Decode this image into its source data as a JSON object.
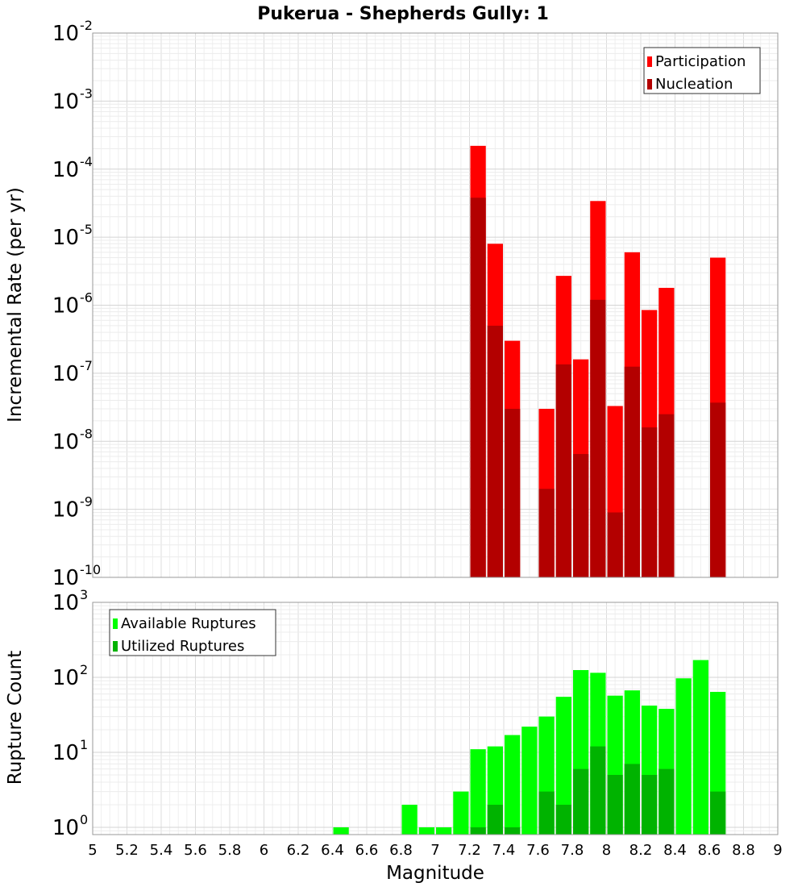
{
  "title": "Pukerua - Shepherds Gully: 1",
  "xlabel": "Magnitude",
  "x_ticks": [
    "5",
    "5.2",
    "5.4",
    "5.6",
    "5.8",
    "6",
    "6.2",
    "6.4",
    "6.6",
    "6.8",
    "7",
    "7.2",
    "7.4",
    "7.6",
    "7.8",
    "8",
    "8.2",
    "8.4",
    "8.6",
    "8.8",
    "9"
  ],
  "colors": {
    "participation": "#ff0000",
    "nucleation": "#b30000",
    "available": "#00ff00",
    "utilized": "#00b300"
  },
  "chart_data": [
    {
      "type": "bar",
      "ylabel": "Incremental Rate (per yr)",
      "xlim": [
        5,
        9
      ],
      "ylim": [
        1e-10,
        0.01
      ],
      "yscale": "log",
      "y_ticks": [
        {
          "base": "10",
          "exp": "-10",
          "value": 1e-10
        },
        {
          "base": "10",
          "exp": "-9",
          "value": 1e-09
        },
        {
          "base": "10",
          "exp": "-8",
          "value": 1e-08
        },
        {
          "base": "10",
          "exp": "-7",
          "value": 1e-07
        },
        {
          "base": "10",
          "exp": "-6",
          "value": 1e-06
        },
        {
          "base": "10",
          "exp": "-5",
          "value": 1e-05
        },
        {
          "base": "10",
          "exp": "-4",
          "value": 0.0001
        },
        {
          "base": "10",
          "exp": "-3",
          "value": 0.001
        },
        {
          "base": "10",
          "exp": "-2",
          "value": 0.01
        }
      ],
      "bin_width": 0.1,
      "grid": true,
      "legend_position": "top-right",
      "series": [
        {
          "name": "Participation",
          "color_key": "participation",
          "x": [
            7.25,
            7.35,
            7.45,
            7.65,
            7.75,
            7.85,
            7.95,
            8.05,
            8.15,
            8.25,
            8.35,
            8.65
          ],
          "values": [
            0.00022,
            8e-06,
            3e-07,
            3e-08,
            2.7e-06,
            1.6e-07,
            3.4e-05,
            3.3e-08,
            6e-06,
            8.5e-07,
            1.8e-06,
            5e-06
          ]
        },
        {
          "name": "Nucleation",
          "color_key": "nucleation",
          "x": [
            7.25,
            7.35,
            7.45,
            7.65,
            7.75,
            7.85,
            7.95,
            8.05,
            8.15,
            8.25,
            8.35,
            8.65
          ],
          "values": [
            3.8e-05,
            5e-07,
            3e-08,
            2e-09,
            1.35e-07,
            6.5e-09,
            1.2e-06,
            9e-10,
            1.25e-07,
            1.6e-08,
            2.5e-08,
            3.7e-08
          ]
        }
      ]
    },
    {
      "type": "bar",
      "ylabel": "Rupture Count",
      "xlim": [
        5,
        9
      ],
      "ylim": [
        0.8,
        1000
      ],
      "yscale": "log",
      "y_ticks": [
        {
          "base": "10",
          "exp": "0",
          "value": 1
        },
        {
          "base": "10",
          "exp": "1",
          "value": 10
        },
        {
          "base": "10",
          "exp": "2",
          "value": 100
        },
        {
          "base": "10",
          "exp": "3",
          "value": 1000
        }
      ],
      "bin_width": 0.1,
      "grid": true,
      "legend_position": "top-left",
      "series": [
        {
          "name": "Available Ruptures",
          "color_key": "available",
          "x": [
            6.45,
            6.85,
            6.95,
            7.05,
            7.15,
            7.25,
            7.35,
            7.45,
            7.55,
            7.65,
            7.75,
            7.85,
            7.95,
            8.05,
            8.15,
            8.25,
            8.35,
            8.45,
            8.55,
            8.65
          ],
          "values": [
            1,
            2,
            1,
            1,
            3,
            11,
            12,
            17,
            22,
            30,
            55,
            125,
            115,
            57,
            67,
            42,
            38,
            97,
            170,
            64
          ]
        },
        {
          "name": "Utilized Ruptures",
          "color_key": "utilized",
          "x": [
            7.25,
            7.35,
            7.45,
            7.65,
            7.75,
            7.85,
            7.95,
            8.05,
            8.15,
            8.25,
            8.35,
            8.65
          ],
          "values": [
            1,
            2,
            1,
            3,
            2,
            6,
            12,
            5,
            7,
            5,
            6,
            3
          ]
        }
      ]
    }
  ]
}
